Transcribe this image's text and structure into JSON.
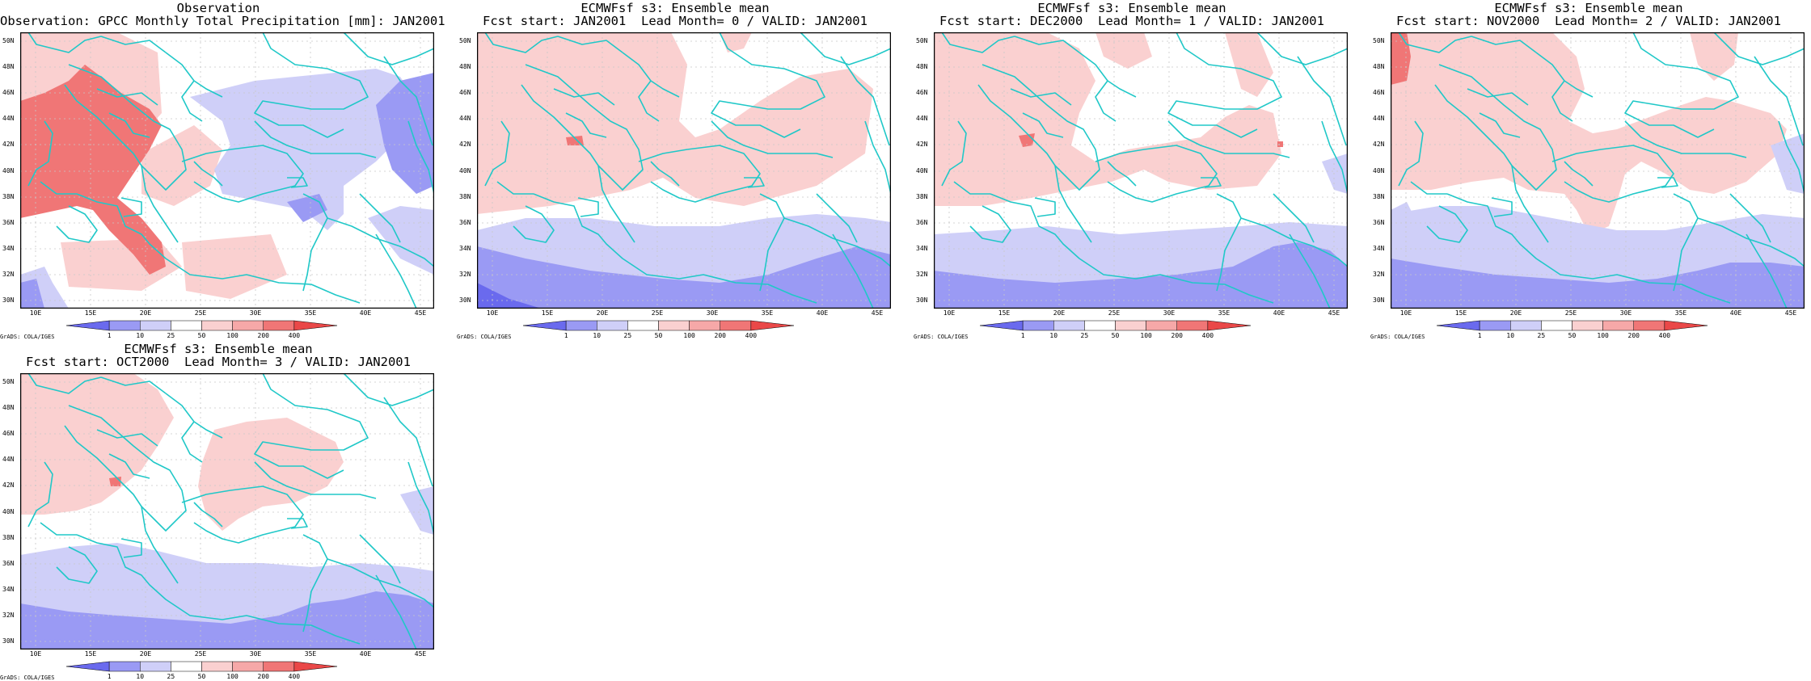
{
  "panels": [
    {
      "line1": "Observation",
      "line2": "Observation: GPCC Monthly Total Precipitation [mm]: JAN2001",
      "variant": "obs"
    },
    {
      "line1": "ECMWFsf s3: Ensemble mean",
      "line2": "Fcst start: JAN2001  Lead Month= 0 / VALID: JAN2001",
      "variant": "f0"
    },
    {
      "line1": "ECMWFsf s3: Ensemble mean",
      "line2": "Fcst start: DEC2000  Lead Month= 1 / VALID: JAN2001",
      "variant": "f1"
    },
    {
      "line1": "ECMWFsf s3: Ensemble mean",
      "line2": "Fcst start: NOV2000  Lead Month= 2 / VALID: JAN2001",
      "variant": "f2"
    },
    {
      "line1": "ECMWFsf s3: Ensemble mean",
      "line2": "Fcst start: OCT2000  Lead Month= 3 / VALID: JAN2001",
      "variant": "f3"
    }
  ],
  "map": {
    "lat_labels": [
      "50N",
      "48N",
      "46N",
      "44N",
      "42N",
      "40N",
      "38N",
      "36N",
      "34N",
      "32N",
      "30N"
    ],
    "lon_labels": [
      "10E",
      "15E",
      "20E",
      "25E",
      "30E",
      "35E",
      "40E",
      "45E"
    ],
    "lon_range": [
      8,
      46
    ],
    "lat_range": [
      30,
      51
    ],
    "coast_color": "#20c8c8",
    "grid_color": "#c8c8c8"
  },
  "colorbar": {
    "labels": [
      "1",
      "10",
      "25",
      "50",
      "100",
      "200",
      "400"
    ],
    "colors": [
      "#6a6aee",
      "#9a9af4",
      "#cfcff8",
      "#ffffff",
      "#fad0d0",
      "#f6a8a8",
      "#f07676",
      "#ea4848"
    ]
  },
  "credit": "GrADS: COLA/IGES"
}
